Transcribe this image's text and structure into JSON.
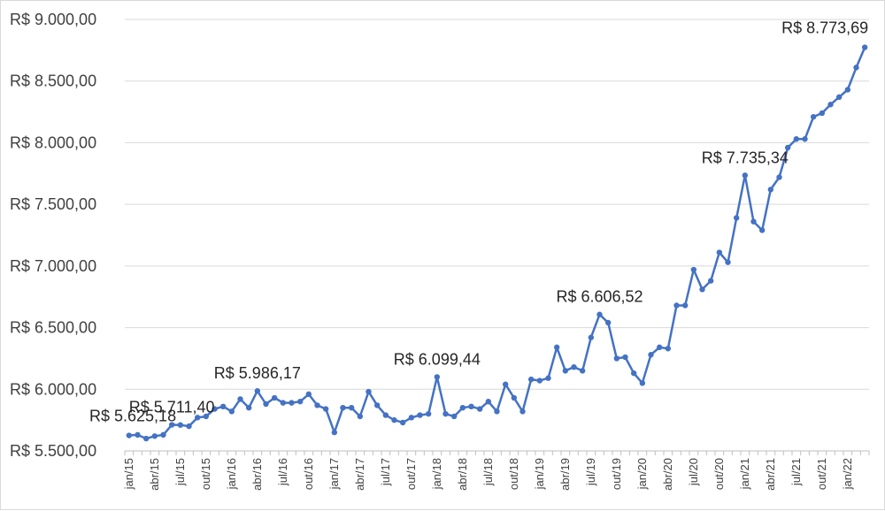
{
  "chart_data": {
    "type": "line",
    "title": "",
    "xlabel": "",
    "ylabel": "",
    "ylim": [
      5500,
      9000
    ],
    "yticks": [
      5500,
      6000,
      6500,
      7000,
      7500,
      8000,
      8500,
      9000
    ],
    "ytick_labels": [
      "R$ 5.500,00",
      "R$ 6.000,00",
      "R$ 6.500,00",
      "R$ 7.000,00",
      "R$ 7.500,00",
      "R$ 8.000,00",
      "R$ 8.500,00",
      "R$ 9.000,00"
    ],
    "grid": true,
    "legend": "none",
    "series_color": "#4472c4",
    "x_tick_labels": [
      "jan/15",
      "abr/15",
      "jul/15",
      "out/15",
      "jan/16",
      "abr/16",
      "jul/16",
      "out/16",
      "jan/17",
      "abr/17",
      "jul/17",
      "out/17",
      "jan/18",
      "abr/18",
      "jul/18",
      "out/18",
      "jan/19",
      "abr/19",
      "jul/19",
      "out/19",
      "jan/20",
      "abr/20",
      "jul/20",
      "out/20",
      "jan/21",
      "abr/21",
      "jul/21",
      "out/21",
      "jan/22"
    ],
    "x": [
      "jan/15",
      "fev/15",
      "mar/15",
      "abr/15",
      "mai/15",
      "jun/15",
      "jul/15",
      "ago/15",
      "set/15",
      "out/15",
      "nov/15",
      "dez/15",
      "jan/16",
      "fev/16",
      "mar/16",
      "abr/16",
      "mai/16",
      "jun/16",
      "jul/16",
      "ago/16",
      "set/16",
      "out/16",
      "nov/16",
      "dez/16",
      "jan/17",
      "fev/17",
      "mar/17",
      "abr/17",
      "mai/17",
      "jun/17",
      "jul/17",
      "ago/17",
      "set/17",
      "out/17",
      "nov/17",
      "dez/17",
      "jan/18",
      "fev/18",
      "mar/18",
      "abr/18",
      "mai/18",
      "jun/18",
      "jul/18",
      "ago/18",
      "set/18",
      "out/18",
      "nov/18",
      "dez/18",
      "jan/19",
      "fev/19",
      "mar/19",
      "abr/19",
      "mai/19",
      "jun/19",
      "jul/19",
      "ago/19",
      "set/19",
      "out/19",
      "nov/19",
      "dez/19",
      "jan/20",
      "fev/20",
      "mar/20",
      "abr/20",
      "mai/20",
      "jun/20",
      "jul/20",
      "ago/20",
      "set/20",
      "out/20",
      "nov/20",
      "dez/20",
      "jan/21",
      "fev/21",
      "mar/21",
      "abr/21",
      "mai/21",
      "jun/21",
      "jul/21",
      "ago/21",
      "set/21",
      "out/21",
      "nov/21",
      "dez/21",
      "jan/22",
      "fev/22",
      "mar/22"
    ],
    "values": [
      5625.18,
      5630,
      5600,
      5620,
      5630,
      5711.4,
      5710,
      5700,
      5770,
      5780,
      5840,
      5860,
      5820,
      5920,
      5850,
      5986.17,
      5880,
      5930,
      5890,
      5890,
      5900,
      5960,
      5870,
      5840,
      5650,
      5850,
      5850,
      5780,
      5980,
      5870,
      5790,
      5750,
      5730,
      5770,
      5790,
      5800,
      6099.44,
      5800,
      5780,
      5850,
      5860,
      5840,
      5900,
      5820,
      6040,
      5930,
      5820,
      6080,
      6070,
      6090,
      6340,
      6150,
      6180,
      6150,
      6420,
      6606.52,
      6540,
      6250,
      6260,
      6130,
      6050,
      6280,
      6340,
      6330,
      6680,
      6680,
      6970,
      6810,
      6880,
      7110,
      7030,
      7390,
      7735.34,
      7360,
      7290,
      7620,
      7720,
      7960,
      8030,
      8030,
      8210,
      8240,
      8310,
      8370,
      8430,
      8610,
      8773.69
    ],
    "data_labels": [
      {
        "index": 0,
        "text": "R$ 5.625,18"
      },
      {
        "index": 5,
        "text": "R$ 5.711,40"
      },
      {
        "index": 15,
        "text": "R$ 5.986,17"
      },
      {
        "index": 36,
        "text": "R$ 6.099,44"
      },
      {
        "index": 55,
        "text": "R$ 6.606,52"
      },
      {
        "index": 72,
        "text": "R$ 7.735,34"
      },
      {
        "index": 86,
        "text": "R$ 8.773,69"
      }
    ]
  }
}
